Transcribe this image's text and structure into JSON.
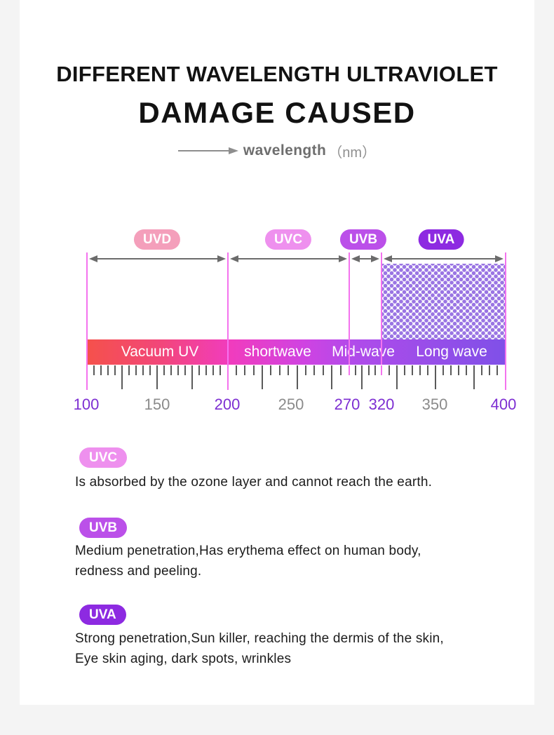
{
  "header": {
    "title_line1": "DIFFERENT WAVELENGTH ULTRAVIOLET",
    "title_line2": "DAMAGE CAUSED",
    "axis_label": "wavelength",
    "axis_unit": "（nm）"
  },
  "spectrum": {
    "bands": [
      {
        "badge": "UVD",
        "badge_color": "#f49fbb",
        "bar_label": "Vacuum UV",
        "nm_start": 100,
        "nm_end": 200,
        "dotted": false
      },
      {
        "badge": "UVC",
        "badge_color": "#ee90ee",
        "bar_label": "shortwave",
        "nm_start": 200,
        "nm_end": 270,
        "dotted": false
      },
      {
        "badge": "UVB",
        "badge_color": "#bb50e9",
        "bar_label": "Mid-wave",
        "nm_start": 270,
        "nm_end": 320,
        "dotted": false
      },
      {
        "badge": "UVA",
        "badge_color": "#8d2ae1",
        "bar_label": "Long wave",
        "nm_start": 320,
        "nm_end": 400,
        "dotted": true
      }
    ],
    "scale_labels": [
      {
        "text": "100",
        "color": "#7d2ed2"
      },
      {
        "text": "150",
        "color": "#8b8b8b"
      },
      {
        "text": "200",
        "color": "#7d2ed2"
      },
      {
        "text": "250",
        "color": "#8b8b8b"
      },
      {
        "text": "270",
        "color": "#7d2ed2"
      },
      {
        "text": "320",
        "color": "#7d2ed2"
      },
      {
        "text": "350",
        "color": "#8b8b8b"
      },
      {
        "text": "400",
        "color": "#7d2ed2"
      }
    ],
    "bar_gradient": [
      "#f5514b",
      "#f2467b",
      "#f13cbd",
      "#cf43e2",
      "#b04bea",
      "#7f50e8"
    ],
    "boundary_line_color": "#f473ee",
    "dot_color": "#9a75e3",
    "arrow_color": "#6b6b6b",
    "tick_color": "#5a5a5a"
  },
  "legend": [
    {
      "badge": "UVC",
      "badge_color": "#ee90ee",
      "lines": [
        "Is absorbed by the ozone layer and cannot reach the earth."
      ]
    },
    {
      "badge": "UVB",
      "badge_color": "#bb50e9",
      "lines": [
        "Medium penetration,Has erythema effect on human body,",
        "redness and peeling."
      ]
    },
    {
      "badge": "UVA",
      "badge_color": "#8d2ae1",
      "lines": [
        "Strong penetration,Sun killer, reaching the dermis of the skin,",
        "Eye skin aging, dark spots, wrinkles"
      ]
    }
  ]
}
